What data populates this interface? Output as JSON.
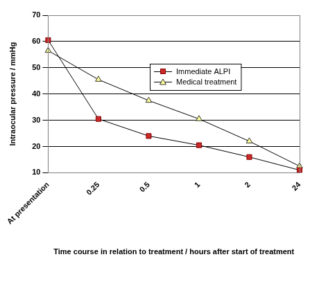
{
  "chart_data": {
    "type": "line",
    "x_label": "Time course in relation to treatment / hours after start of treatment",
    "y_label": "Intraocular pressure / mmHg",
    "categories": [
      "At presentation",
      "0.25",
      "0.5",
      "1",
      "2",
      "24"
    ],
    "series": [
      {
        "name": "Immediate ALPI",
        "color": "#cc2a2a",
        "marker": "square",
        "values": [
          60.5,
          30.5,
          24,
          20.5,
          16,
          11
        ]
      },
      {
        "name": "Medical treatment",
        "color": "#ffff99",
        "marker": "triangle",
        "values": [
          56.5,
          45.5,
          37.5,
          30.5,
          22,
          12.5
        ]
      }
    ],
    "ylim": [
      10,
      70
    ],
    "yticks": [
      10,
      20,
      30,
      40,
      50,
      60,
      70
    ],
    "grid": true,
    "legend": "upper right"
  }
}
